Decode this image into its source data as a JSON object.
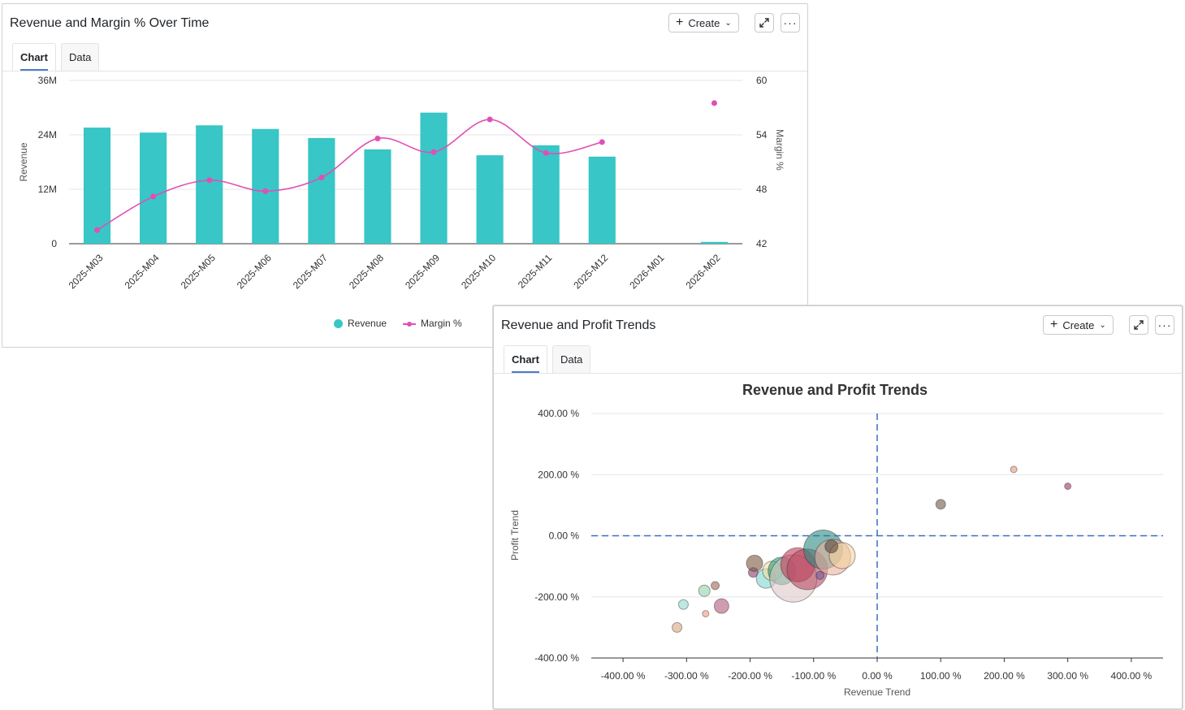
{
  "panel1": {
    "title": "Revenue and Margin % Over Time",
    "create_label": "Create",
    "tabs": [
      {
        "label": "Chart"
      },
      {
        "label": "Data"
      }
    ]
  },
  "panel2": {
    "title": "Revenue and Profit Trends",
    "create_label": "Create",
    "tabs": [
      {
        "label": "Chart"
      },
      {
        "label": "Data"
      }
    ]
  },
  "colors": {
    "revenue": "#38c6c6",
    "margin": "#e050b4",
    "reference_line": "#3a6fc0",
    "active_tab": "#4a7bd0"
  },
  "icons": [
    "plus-icon",
    "chevron-down-icon",
    "expand-icon",
    "more-icon"
  ],
  "chart_data": [
    {
      "type": "bar",
      "title": "",
      "categories": [
        "2025-M03",
        "2025-M04",
        "2025-M05",
        "2025-M06",
        "2025-M07",
        "2025-M08",
        "2025-M09",
        "2025-M10",
        "2025-M11",
        "2025-M12",
        "2026-M01",
        "2026-M02"
      ],
      "series": [
        {
          "name": "Revenue",
          "type": "bar",
          "axis": "left",
          "values": [
            25.6,
            24.5,
            26.1,
            25.3,
            23.3,
            20.8,
            28.9,
            19.5,
            21.7,
            19.2,
            0,
            0.4
          ]
        },
        {
          "name": "Margin %",
          "type": "line",
          "axis": "right",
          "values": [
            43.5,
            47.2,
            49.0,
            47.8,
            49.3,
            53.6,
            52.1,
            55.7,
            52.0,
            53.2,
            null,
            57.5
          ]
        }
      ],
      "ylabel": "Revenue",
      "y2label": "Margin %",
      "ylim": [
        0,
        36
      ],
      "y_ticks": [
        "0",
        "12M",
        "24M",
        "36M"
      ],
      "y2lim": [
        42,
        60
      ],
      "y2_ticks": [
        "42",
        "48",
        "54",
        "60"
      ],
      "legend": [
        "Revenue",
        "Margin %"
      ],
      "legend_position": "bottom",
      "grid": true
    },
    {
      "type": "scatter",
      "title": "Revenue and Profit Trends",
      "xlabel": "Revenue Trend",
      "ylabel": "Profit Trend",
      "xlim": [
        -450,
        450
      ],
      "ylim": [
        -400,
        400
      ],
      "x_ticks": [
        "-400.00 %",
        "-300.00 %",
        "-200.00 %",
        "-100.00 %",
        "0.00 %",
        "100.00 %",
        "200.00 %",
        "300.00 %",
        "400.00 %"
      ],
      "y_ticks": [
        "-400.00 %",
        "-200.00 %",
        "0.00 %",
        "200.00 %",
        "400.00 %"
      ],
      "reference_lines": {
        "x": 0,
        "y": 0
      },
      "grid": true,
      "points": [
        {
          "x": -315,
          "y": -300,
          "r": 6,
          "color": "#d9a77e"
        },
        {
          "x": -305,
          "y": -225,
          "r": 6,
          "color": "#8fd9d0"
        },
        {
          "x": -270,
          "y": -255,
          "r": 4,
          "color": "#ef9a7e"
        },
        {
          "x": -272,
          "y": -180,
          "r": 7,
          "color": "#8fd4b0"
        },
        {
          "x": -255,
          "y": -163,
          "r": 5,
          "color": "#9b6a50"
        },
        {
          "x": -245,
          "y": -230,
          "r": 9,
          "color": "#b05a7e"
        },
        {
          "x": -195,
          "y": -120,
          "r": 6,
          "color": "#8a3a6a"
        },
        {
          "x": -193,
          "y": -90,
          "r": 10,
          "color": "#7a5840"
        },
        {
          "x": -175,
          "y": -140,
          "r": 12,
          "color": "#7fd6d0"
        },
        {
          "x": -165,
          "y": -115,
          "r": 12,
          "color": "#f0e0a0"
        },
        {
          "x": -150,
          "y": -115,
          "r": 17,
          "color": "#1f9e7a"
        },
        {
          "x": -132,
          "y": -140,
          "r": 29,
          "color": "#dcc8c8"
        },
        {
          "x": -125,
          "y": -95,
          "r": 21,
          "color": "#c23a5a"
        },
        {
          "x": -110,
          "y": -110,
          "r": 25,
          "color": "#b84a62"
        },
        {
          "x": -90,
          "y": -130,
          "r": 5,
          "color": "#6a5aa0"
        },
        {
          "x": -85,
          "y": -45,
          "r": 24,
          "color": "#2a8a7e"
        },
        {
          "x": -70,
          "y": -70,
          "r": 22,
          "color": "#e8b0a0"
        },
        {
          "x": -55,
          "y": -65,
          "r": 16,
          "color": "#f3d2a0"
        },
        {
          "x": -72,
          "y": -35,
          "r": 8,
          "color": "#5a4a3a"
        },
        {
          "x": 100,
          "y": 103,
          "r": 6,
          "color": "#6a5a4a"
        },
        {
          "x": 215,
          "y": 217,
          "r": 4,
          "color": "#e79a80"
        },
        {
          "x": 300,
          "y": 162,
          "r": 4,
          "color": "#9a3a6a"
        }
      ]
    }
  ]
}
